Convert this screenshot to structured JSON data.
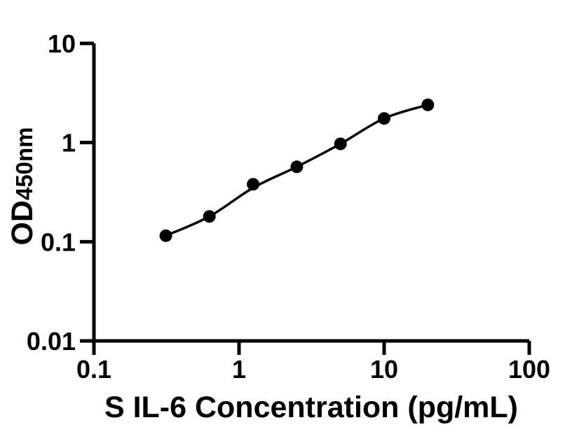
{
  "figure": {
    "background": "#ffffff",
    "foreground": "#000000"
  },
  "chart_data": {
    "type": "scatter",
    "subtype": "elisa-standard-curve",
    "title": "",
    "xlabel": "S IL-6 Concentration (pg/mL)",
    "ylabel_main": "OD",
    "ylabel_sub": "450nm",
    "xscale": "log",
    "yscale": "log",
    "xlim": [
      0.1,
      100
    ],
    "ylim": [
      0.01,
      10
    ],
    "grid": false,
    "legend": null,
    "xticks": [
      {
        "value": 0.1,
        "label": "0.1"
      },
      {
        "value": 1,
        "label": "1"
      },
      {
        "value": 10,
        "label": "10"
      },
      {
        "value": 100,
        "label": "100"
      }
    ],
    "yticks": [
      {
        "value": 0.01,
        "label": "0.01"
      },
      {
        "value": 0.1,
        "label": "0.1"
      },
      {
        "value": 1,
        "label": "1"
      },
      {
        "value": 10,
        "label": "10"
      }
    ],
    "points": [
      {
        "x": 0.313,
        "y": 0.115
      },
      {
        "x": 0.625,
        "y": 0.18
      },
      {
        "x": 1.25,
        "y": 0.38
      },
      {
        "x": 2.5,
        "y": 0.57
      },
      {
        "x": 5,
        "y": 0.97
      },
      {
        "x": 10,
        "y": 1.75
      },
      {
        "x": 20,
        "y": 2.4
      }
    ],
    "fit_curve": [
      {
        "x": 0.313,
        "y": 0.115
      },
      {
        "x": 0.625,
        "y": 0.18
      },
      {
        "x": 1.25,
        "y": 0.35
      },
      {
        "x": 2.5,
        "y": 0.57
      },
      {
        "x": 5,
        "y": 0.97
      },
      {
        "x": 10,
        "y": 1.75
      },
      {
        "x": 20,
        "y": 2.4
      }
    ],
    "marker_style": {
      "shape": "circle",
      "radius": 9,
      "color": "#000000"
    },
    "line_style": {
      "color": "#000000",
      "width": 3.5
    },
    "axis_color": "#000000"
  }
}
